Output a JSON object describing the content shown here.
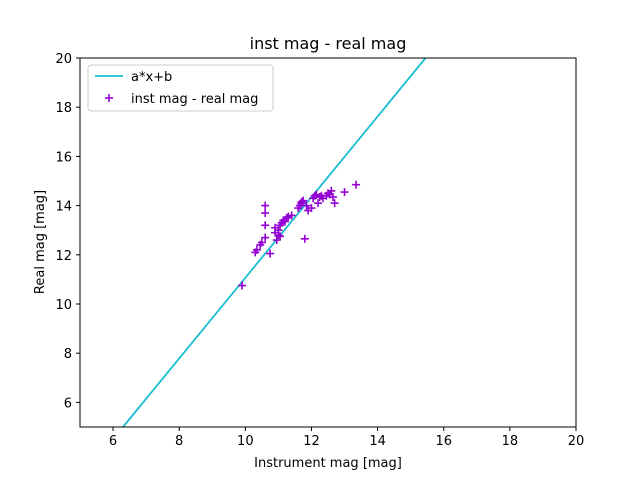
{
  "chart_data": {
    "type": "scatter",
    "title": "inst mag - real mag",
    "xlabel": "Instrument mag [mag]",
    "ylabel": "Real mag [mag]",
    "xlim": [
      5,
      20
    ],
    "ylim": [
      5,
      20
    ],
    "xticks": [
      6,
      8,
      10,
      12,
      14,
      16,
      18,
      20
    ],
    "yticks": [
      6,
      8,
      10,
      12,
      14,
      16,
      18,
      20
    ],
    "grid": false,
    "legend_position": "top-left",
    "series": [
      {
        "name": "a*x+b",
        "kind": "line",
        "color": "#17becf",
        "x": [
          6.3,
          15.45
        ],
        "y": [
          5.0,
          20.0
        ]
      },
      {
        "name": "inst mag - real mag",
        "kind": "scatter",
        "marker": "+",
        "color": "#9400d3",
        "x": [
          9.9,
          10.3,
          10.35,
          10.45,
          10.5,
          10.6,
          10.6,
          10.6,
          10.6,
          10.75,
          10.9,
          10.9,
          10.95,
          11.0,
          11.0,
          11.05,
          11.05,
          11.1,
          11.15,
          11.2,
          11.25,
          11.3,
          11.4,
          11.6,
          11.65,
          11.7,
          11.7,
          11.75,
          11.8,
          11.85,
          11.9,
          12.0,
          12.05,
          12.1,
          12.15,
          12.2,
          12.25,
          12.3,
          12.35,
          12.45,
          12.5,
          12.55,
          12.6,
          12.65,
          12.7,
          13.0,
          13.35
        ],
        "y": [
          10.75,
          12.1,
          12.2,
          12.4,
          12.5,
          12.7,
          13.2,
          13.7,
          14.0,
          12.05,
          12.9,
          13.1,
          12.6,
          12.8,
          13.0,
          13.2,
          12.75,
          13.3,
          13.4,
          13.35,
          13.5,
          13.55,
          13.6,
          13.9,
          14.0,
          14.1,
          14.15,
          14.2,
          12.65,
          14.0,
          13.8,
          13.9,
          14.3,
          14.4,
          14.45,
          14.1,
          14.35,
          14.4,
          14.3,
          14.4,
          14.5,
          14.45,
          14.6,
          14.35,
          14.1,
          14.55,
          14.85
        ]
      }
    ]
  }
}
